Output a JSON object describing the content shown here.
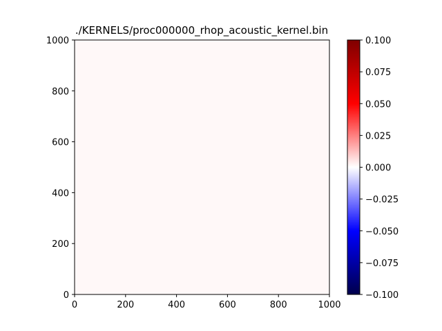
{
  "chart_data": {
    "type": "heatmap",
    "title": "./KERNELS/proc000000_rhop_acoustic_kernel.bin",
    "xlabel": "",
    "ylabel": "",
    "xlim": [
      0,
      1000
    ],
    "ylim": [
      0,
      1000
    ],
    "x_ticks": [
      0,
      200,
      400,
      600,
      800,
      1000
    ],
    "y_ticks": [
      0,
      200,
      400,
      600,
      800,
      1000
    ],
    "field_value": 0.0,
    "field_color": "#fff8f8",
    "grid": false,
    "colormap": "seismic",
    "colormap_stops": [
      "#00004c",
      "#0000ff",
      "#ffffff",
      "#ff0000",
      "#7f0000"
    ],
    "colorbar": {
      "vmin": -0.1,
      "vmax": 0.1,
      "ticks": [
        0.1,
        0.075,
        0.05,
        0.025,
        0.0,
        -0.025,
        -0.05,
        -0.075,
        -0.1
      ],
      "tick_labels": [
        "0.100",
        "0.075",
        "0.050",
        "0.025",
        "0.000",
        "−0.025",
        "−0.050",
        "−0.075",
        "−0.100"
      ],
      "placement": "right"
    }
  }
}
